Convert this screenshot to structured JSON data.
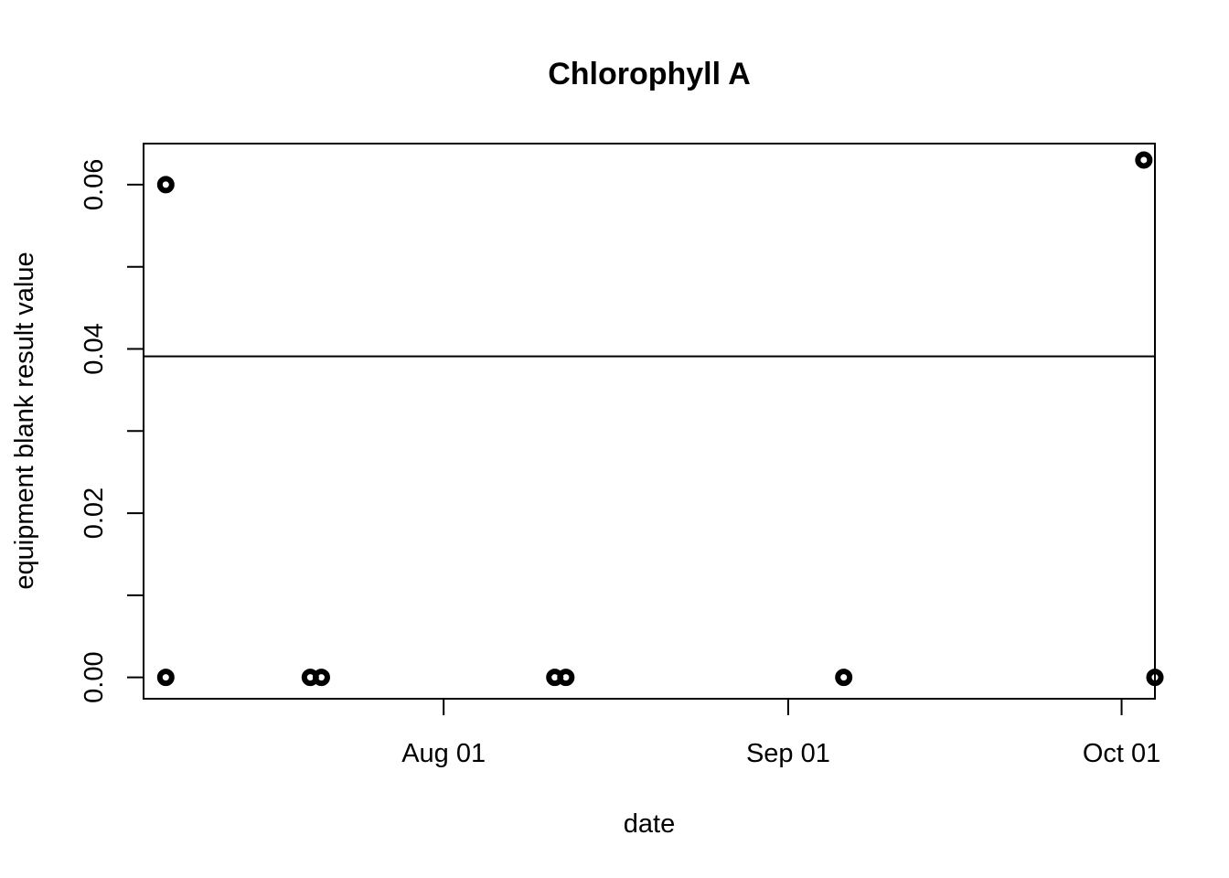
{
  "chart_data": {
    "type": "scatter",
    "title": "Chlorophyll A",
    "xlabel": "date",
    "ylabel": "equipment blank result value",
    "x_type": "date",
    "xlim": [
      "2023-07-05",
      "2023-10-04"
    ],
    "ylim": [
      -0.0026,
      0.065
    ],
    "x_ticks": [
      {
        "date": "2023-08-01",
        "label": "Aug 01"
      },
      {
        "date": "2023-09-01",
        "label": "Sep 01"
      },
      {
        "date": "2023-10-01",
        "label": "Oct 01"
      }
    ],
    "y_ticks": [
      {
        "value": 0.0,
        "label": "0.00"
      },
      {
        "value": 0.01,
        "label": ""
      },
      {
        "value": 0.02,
        "label": "0.02"
      },
      {
        "value": 0.03,
        "label": ""
      },
      {
        "value": 0.04,
        "label": "0.04"
      },
      {
        "value": 0.05,
        "label": ""
      },
      {
        "value": 0.06,
        "label": "0.06"
      }
    ],
    "points": [
      {
        "x": "2023-07-07",
        "y": 0.06
      },
      {
        "x": "2023-07-07",
        "y": 0.0
      },
      {
        "x": "2023-07-20",
        "y": 0.0
      },
      {
        "x": "2023-07-21",
        "y": 0.0
      },
      {
        "x": "2023-08-11",
        "y": 0.0
      },
      {
        "x": "2023-08-12",
        "y": 0.0
      },
      {
        "x": "2023-09-06",
        "y": 0.0
      },
      {
        "x": "2023-10-03",
        "y": 0.063
      },
      {
        "x": "2023-10-04",
        "y": 0.0
      }
    ],
    "hline": {
      "y": 0.0391
    },
    "grid": false,
    "legend": "none"
  }
}
